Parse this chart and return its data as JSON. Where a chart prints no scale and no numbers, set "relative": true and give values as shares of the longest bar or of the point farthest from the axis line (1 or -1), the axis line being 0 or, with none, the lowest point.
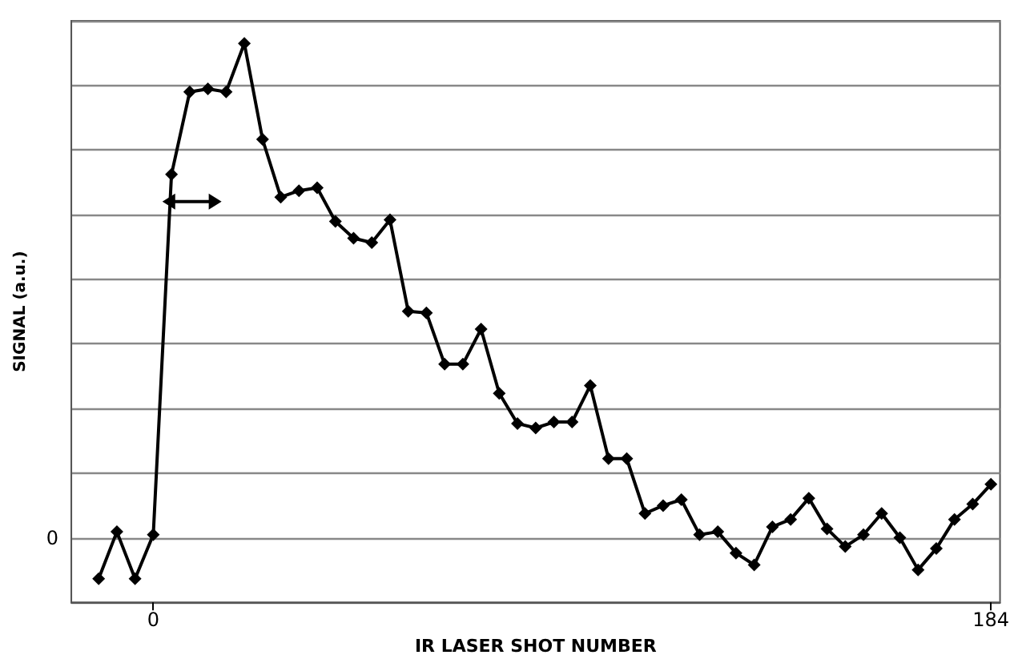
{
  "chart_data": {
    "type": "line",
    "xlabel": "IR LASER SHOT NUMBER",
    "ylabel": "SIGNAL (a.u.)",
    "relative": true,
    "x": [
      -12,
      -8,
      -4,
      0,
      4,
      8,
      12,
      16,
      20,
      24,
      28,
      32,
      36,
      40,
      44,
      48,
      52,
      56,
      60,
      64,
      68,
      72,
      76,
      80,
      84,
      88,
      92,
      96,
      100,
      104,
      108,
      112,
      116,
      120,
      124,
      128,
      132,
      136,
      140,
      144,
      148,
      152,
      156,
      160,
      164,
      168,
      172,
      176,
      180,
      184
    ],
    "series": [
      {
        "color": "#000000",
        "values": [
          -0.083,
          0.012,
          -0.083,
          0.006,
          0.735,
          0.902,
          0.908,
          0.902,
          1,
          0.806,
          0.689,
          0.702,
          0.708,
          0.64,
          0.606,
          0.597,
          0.643,
          0.458,
          0.455,
          0.351,
          0.351,
          0.422,
          0.292,
          0.231,
          0.222,
          0.234,
          0.234,
          0.308,
          0.16,
          0.16,
          0.049,
          0.065,
          0.077,
          0.006,
          0.012,
          -0.031,
          -0.055,
          0.022,
          0.037,
          0.08,
          0.018,
          -0.018,
          0.006,
          0.049,
          0,
          -0.065,
          -0.022,
          0.037,
          0.068,
          0.108
        ]
      }
    ],
    "xlim": [
      -18,
      186
    ],
    "xticks": [
      0,
      184
    ],
    "annotations": [
      "0"
    ],
    "grid": "y",
    "marker": "diamond",
    "line_style": "solid"
  }
}
